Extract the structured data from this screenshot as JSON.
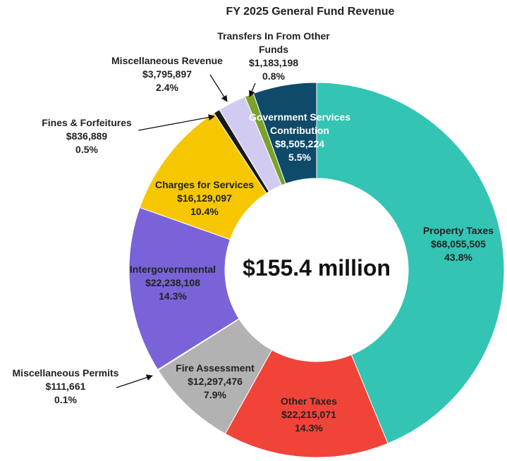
{
  "chart_data": {
    "type": "donut",
    "title": "FY 2025 General Fund Revenue",
    "center_label": "$155.4 million",
    "categories": [
      "Property Taxes",
      "Other Taxes",
      "Fire Assessment",
      "Miscellaneous Permits",
      "Intergovernmental",
      "Charges for Services",
      "Fines & Forfeitures",
      "Miscellaneous Revenue",
      "Transfers In From Other Funds",
      "Government Services Contribution"
    ],
    "values": [
      68055505,
      22215071,
      12297476,
      111661,
      22238108,
      16129097,
      836889,
      3795897,
      1183198,
      8505224
    ],
    "value_labels": [
      "$68,055,505",
      "$22,215,071",
      "$12,297,476",
      "$111,661",
      "$22,238,108",
      "$16,129,097",
      "$836,889",
      "$3,795,897",
      "$1,183,198",
      "$8,505,224"
    ],
    "percent_labels": [
      "43.8%",
      "14.3%",
      "7.9%",
      "0.1%",
      "14.3%",
      "10.4%",
      "0.5%",
      "2.4%",
      "0.8%",
      "5.5%"
    ],
    "colors": [
      "#33c4b3",
      "#f04439",
      "#b2b2b2",
      "#555555",
      "#7a63d8",
      "#f6c700",
      "#1a1a1a",
      "#d2cbf1",
      "#7ba22b",
      "#0f4a69"
    ]
  }
}
